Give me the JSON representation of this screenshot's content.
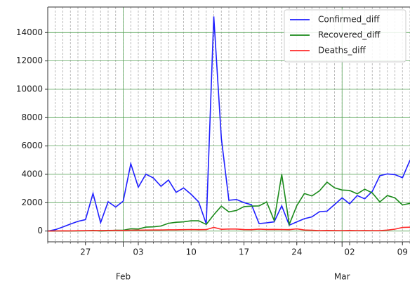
{
  "chart_data": {
    "type": "line",
    "x": [
      "01-22",
      "01-23",
      "01-24",
      "01-25",
      "01-26",
      "01-27",
      "01-28",
      "01-29",
      "01-30",
      "01-31",
      "02-01",
      "02-02",
      "02-03",
      "02-04",
      "02-05",
      "02-06",
      "02-07",
      "02-08",
      "02-09",
      "02-10",
      "02-11",
      "02-12",
      "02-13",
      "02-14",
      "02-15",
      "02-16",
      "02-17",
      "02-18",
      "02-19",
      "02-20",
      "02-21",
      "02-22",
      "02-23",
      "02-24",
      "02-25",
      "02-26",
      "02-27",
      "02-28",
      "02-29",
      "03-01",
      "03-02",
      "03-03",
      "03-04",
      "03-05",
      "03-06",
      "03-07",
      "03-08",
      "03-09",
      "03-10"
    ],
    "series": [
      {
        "name": "Confirmed_diff",
        "color": "#1f1fff",
        "values": [
          0,
          98,
          288,
          493,
          684,
          809,
          2651,
          588,
          2068,
          1693,
          2111,
          4749,
          3094,
          4011,
          3743,
          3159,
          3597,
          2729,
          3036,
          2587,
          2050,
          500,
          15134,
          6528,
          2172,
          2223,
          2007,
          1855,
          530,
          580,
          650,
          1779,
          413,
          650,
          873,
          1000,
          1367,
          1400,
          1867,
          2344,
          1923,
          2500,
          2272,
          2800,
          3900,
          4030,
          3980,
          3760,
          5000
        ]
      },
      {
        "name": "Recovered_diff",
        "color": "#1a8a1a",
        "values": [
          0,
          2,
          6,
          3,
          9,
          18,
          43,
          6,
          21,
          51,
          60,
          163,
          140,
          278,
          296,
          356,
          550,
          620,
          650,
          720,
          728,
          465,
          1150,
          1761,
          1354,
          1451,
          1724,
          1758,
          1772,
          2050,
          749,
          4000,
          466,
          1795,
          2647,
          2471,
          2836,
          3451,
          3049,
          2896,
          2866,
          2625,
          2950,
          2690,
          2050,
          2503,
          2340,
          1842,
          1950
        ]
      },
      {
        "name": "Deaths_diff",
        "color": "#ff2a2a",
        "values": [
          0,
          8,
          16,
          15,
          24,
          26,
          26,
          38,
          43,
          46,
          45,
          57,
          64,
          66,
          73,
          73,
          86,
          89,
          97,
          108,
          97,
          105,
          254,
          121,
          143,
          142,
          105,
          98,
          136,
          115,
          118,
          109,
          97,
          150,
          71,
          52,
          29,
          44,
          37,
          35,
          42,
          31,
          38,
          31,
          30,
          68,
          130,
          250,
          270
        ]
      }
    ],
    "xticks": [
      {
        "value": "01-27",
        "label": "27"
      },
      {
        "value": "02-03",
        "label": "03"
      },
      {
        "value": "02-10",
        "label": "10"
      },
      {
        "value": "02-17",
        "label": "17"
      },
      {
        "value": "02-24",
        "label": "24"
      },
      {
        "value": "03-02",
        "label": "02"
      },
      {
        "value": "03-09",
        "label": "09"
      }
    ],
    "month_ticks": [
      {
        "value": "02-01",
        "label": "Feb"
      },
      {
        "value": "03-01",
        "label": "Mar"
      }
    ],
    "ylim": [
      -760,
      15800
    ],
    "yticks": [
      0,
      2000,
      4000,
      6000,
      8000,
      10000,
      12000,
      14000
    ],
    "grid": true,
    "legend": "upper right"
  }
}
